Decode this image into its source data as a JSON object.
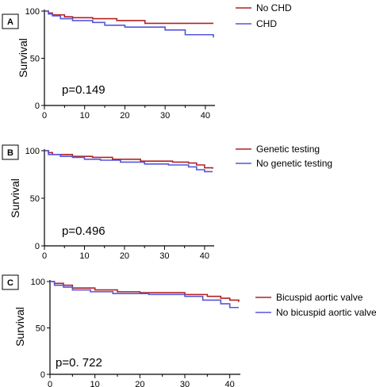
{
  "chart_data": [
    {
      "type": "line",
      "panel": "A",
      "ylabel": "Survival",
      "xlim": [
        0,
        42
      ],
      "ylim": [
        0,
        100
      ],
      "xticks": [
        0,
        10,
        20,
        30,
        40
      ],
      "yticks": [
        0,
        50,
        100
      ],
      "annotation": "p=0.149",
      "legend_position": "top-right",
      "series": [
        {
          "name": "No CHD",
          "color": "#b22222",
          "x": [
            0,
            1,
            2,
            5,
            7,
            12,
            18,
            25,
            42
          ],
          "y": [
            100,
            98,
            96,
            94,
            93,
            92,
            90,
            87,
            87
          ]
        },
        {
          "name": "CHD",
          "color": "#5555dd",
          "x": [
            0,
            1,
            2,
            4,
            7,
            12,
            15,
            20,
            30,
            35,
            42
          ],
          "y": [
            100,
            97,
            95,
            92,
            90,
            88,
            85,
            83,
            80,
            75,
            72
          ]
        }
      ]
    },
    {
      "type": "line",
      "panel": "B",
      "ylabel": "Survival",
      "xlim": [
        0,
        42
      ],
      "ylim": [
        0,
        100
      ],
      "xticks": [
        0,
        10,
        20,
        30,
        40
      ],
      "yticks": [
        0,
        50,
        100
      ],
      "annotation": "p=0.496",
      "legend_position": "top-right",
      "series": [
        {
          "name": "Genetic testing",
          "color": "#b22222",
          "x": [
            0,
            1,
            2,
            7,
            12,
            17,
            24,
            32,
            36,
            38,
            40,
            42
          ],
          "y": [
            100,
            98,
            96,
            94,
            93,
            91,
            89,
            88,
            87,
            85,
            82,
            81
          ]
        },
        {
          "name": "No genetic testing",
          "color": "#5555dd",
          "x": [
            0,
            1,
            4,
            7,
            10,
            14,
            19,
            25,
            31,
            36,
            38,
            40,
            42
          ],
          "y": [
            100,
            96,
            94,
            93,
            91,
            90,
            88,
            86,
            85,
            83,
            80,
            78,
            78
          ]
        }
      ]
    },
    {
      "type": "line",
      "panel": "C",
      "ylabel": "Survival",
      "xlim": [
        0,
        42
      ],
      "ylim": [
        0,
        100
      ],
      "xticks": [
        0,
        10,
        20,
        30,
        40
      ],
      "yticks": [
        0,
        50,
        100
      ],
      "annotation": "p=0. 722",
      "legend_position": "right",
      "series": [
        {
          "name": "Bicuspid aortic valve",
          "color": "#b22222",
          "x": [
            0,
            1,
            3,
            5,
            10,
            15,
            20,
            30,
            35,
            38,
            40,
            42
          ],
          "y": [
            100,
            98,
            96,
            93,
            91,
            89,
            88,
            86,
            84,
            82,
            80,
            78
          ]
        },
        {
          "name": "No bicuspid aortic valve",
          "color": "#5555dd",
          "x": [
            0,
            1,
            3,
            5,
            9,
            14,
            22,
            30,
            34,
            38,
            40,
            42
          ],
          "y": [
            100,
            96,
            94,
            91,
            89,
            87,
            86,
            84,
            80,
            76,
            72,
            72
          ]
        }
      ]
    }
  ]
}
